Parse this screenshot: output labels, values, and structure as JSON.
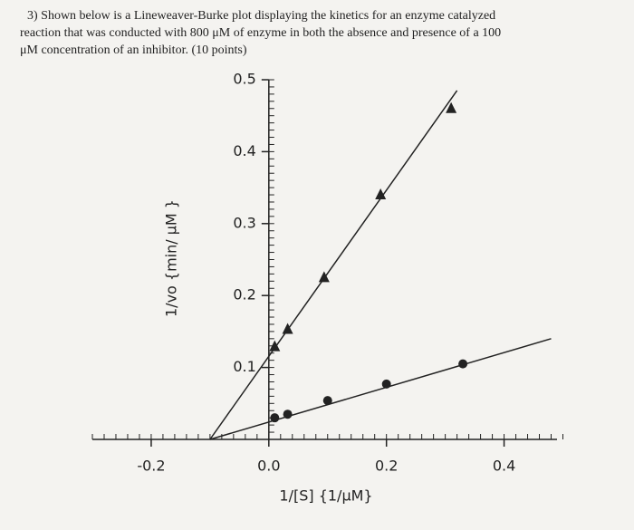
{
  "chart_data": {
    "type": "scatter",
    "title_lines": [
      "3) Shown below is a Lineweaver-Burke plot displaying the kinetics for an enzyme catalyzed",
      "reaction that was conducted with 800 μM of enzyme in both the absence and presence of a 100",
      "μM concentration of an inhibitor. (10 points)"
    ],
    "x_label": "1/[S] {1/μM}",
    "y_label": "1/vo {min/ μM }",
    "xlim": [
      -0.3,
      0.49
    ],
    "ylim": [
      0,
      0.5
    ],
    "xticks": [
      -0.2,
      {
        "value": 0,
        "label": "0.0"
      },
      0.2,
      0.4
    ],
    "yticks": [
      0.1,
      0.2,
      0.3,
      0.4,
      0.5
    ],
    "xminor": 0.02,
    "yminor": 0.01,
    "series": [
      {
        "color": "#222222",
        "marker": "triangle",
        "x": [
          0.01,
          0.032,
          0.094,
          0.19,
          0.31
        ],
        "values": [
          0.129,
          0.153,
          0.225,
          0.34,
          0.46
        ]
      },
      {
        "color": "#222222",
        "marker": "circle",
        "x": [
          0.01,
          0.032,
          0.1,
          0.2,
          0.33
        ],
        "values": [
          0.03,
          0.035,
          0.054,
          0.077,
          0.105
        ]
      },
      {
        "color": "#222222",
        "marker": "none",
        "x": [
          -0.1,
          0.32
        ],
        "values": [
          0,
          0.485
        ]
      },
      {
        "color": "#222222",
        "marker": "none",
        "x": [
          -0.1,
          0.48
        ],
        "values": [
          0,
          0.14
        ]
      }
    ]
  }
}
